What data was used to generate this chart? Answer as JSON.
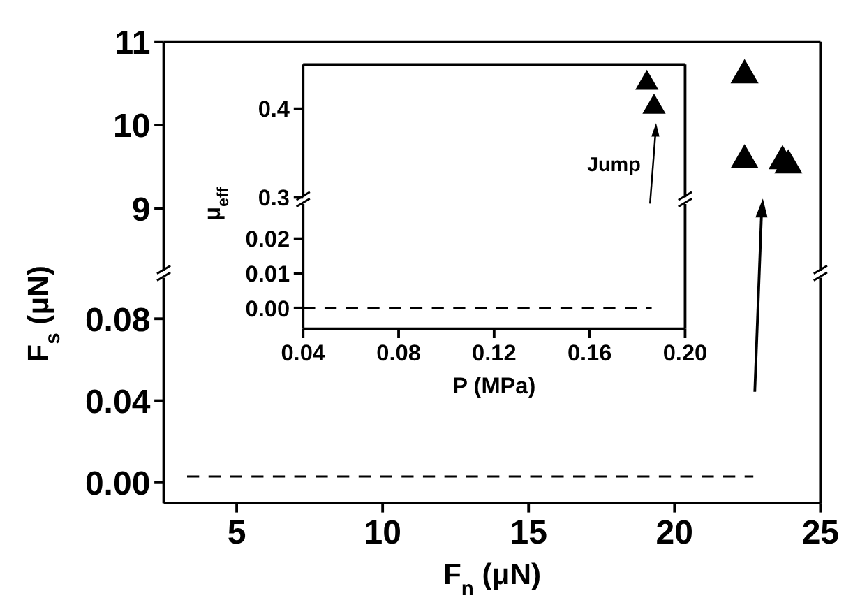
{
  "chart_data": [
    {
      "type": "scatter",
      "ylabel": "F$_{s}$ (μN)",
      "xlim": [
        2.5,
        25
      ],
      "ylim": [
        8.25,
        11
      ],
      "yticks": [
        9,
        10,
        11
      ],
      "tick_labels": "y",
      "marker": "triangle",
      "series": [
        {
          "color": "#000000",
          "x": [
            22.4,
            22.4,
            23.7,
            23.9
          ],
          "values": [
            10.63,
            9.61,
            9.6,
            9.55
          ]
        }
      ]
    },
    {
      "type": "line",
      "xlabel": "F$_{n}$ (μN)",
      "xlim": [
        2.5,
        25
      ],
      "ylim": [
        -0.01,
        0.1
      ],
      "xticks": [
        5,
        10,
        15,
        20,
        25
      ],
      "yticks": [
        {
          "value": 0,
          "label": "0.00"
        },
        {
          "value": 0.04,
          "label": "0.04"
        },
        {
          "value": 0.08,
          "label": "0.08"
        }
      ],
      "line_style": "dashed",
      "marker": "none",
      "series": [
        {
          "color": "#000000",
          "x": [
            3.3,
            22.7
          ],
          "values": [
            0.003,
            0.003
          ]
        }
      ]
    },
    {
      "type": "scatter",
      "ylabel": "μ$_{eff}$",
      "xlim": [
        0.04,
        0.2
      ],
      "ylim": [
        0.3,
        0.45
      ],
      "yticks": [
        0.3,
        0.4
      ],
      "tick_labels": "y",
      "marker": "triangle",
      "annotations": [
        {
          "text": "Jump",
          "x": 0.187,
          "y": 0.405
        }
      ],
      "series": [
        {
          "color": "#000000",
          "x": [
            0.184,
            0.187
          ],
          "values": [
            0.432,
            0.405
          ]
        }
      ]
    },
    {
      "type": "line",
      "xlabel": "P (MPa)",
      "xlim": [
        0.04,
        0.2
      ],
      "ylim": [
        -0.006,
        0.03
      ],
      "xticks": [
        0.04,
        0.08,
        0.12,
        0.16,
        {
          "value": 0.2,
          "label": "0.20"
        }
      ],
      "yticks": [
        {
          "value": 0,
          "label": "0.00"
        },
        {
          "value": 0.01,
          "label": "0.01"
        },
        {
          "value": 0.02,
          "label": "0.02"
        }
      ],
      "line_style": "dashed",
      "marker": "none",
      "series": [
        {
          "color": "#000000",
          "x": [
            0.04,
            0.186
          ],
          "values": [
            0,
            0
          ]
        }
      ]
    }
  ]
}
